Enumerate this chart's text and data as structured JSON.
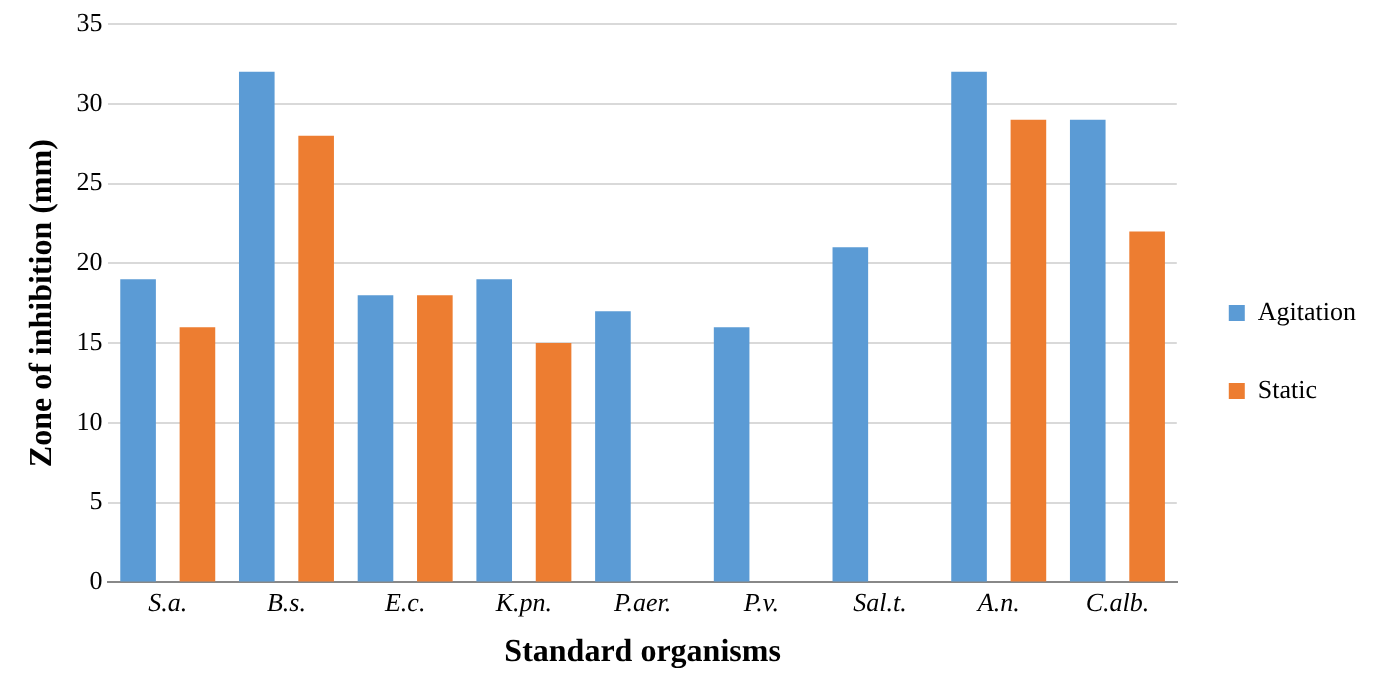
{
  "chart_data": {
    "type": "bar",
    "xlabel": "Standard organisms",
    "ylabel": "Zone of inhibition (mm)",
    "categories": [
      "S.a.",
      "B.s.",
      "E.c.",
      "K.pn.",
      "P.aer.",
      "P.v.",
      "Sal.t.",
      "A.n.",
      "C.alb."
    ],
    "series": [
      {
        "name": "Agitation",
        "color": "#5b9bd5",
        "values": [
          19,
          32,
          18,
          19,
          17,
          16,
          21,
          32,
          29
        ]
      },
      {
        "name": "Static",
        "color": "#ed7d31",
        "values": [
          16,
          28,
          18,
          15,
          null,
          null,
          null,
          29,
          22
        ]
      }
    ],
    "ylim": [
      0,
      35
    ],
    "yticks": [
      0,
      5,
      10,
      15,
      20,
      25,
      30,
      35
    ],
    "grid": "y",
    "legend": "right"
  }
}
